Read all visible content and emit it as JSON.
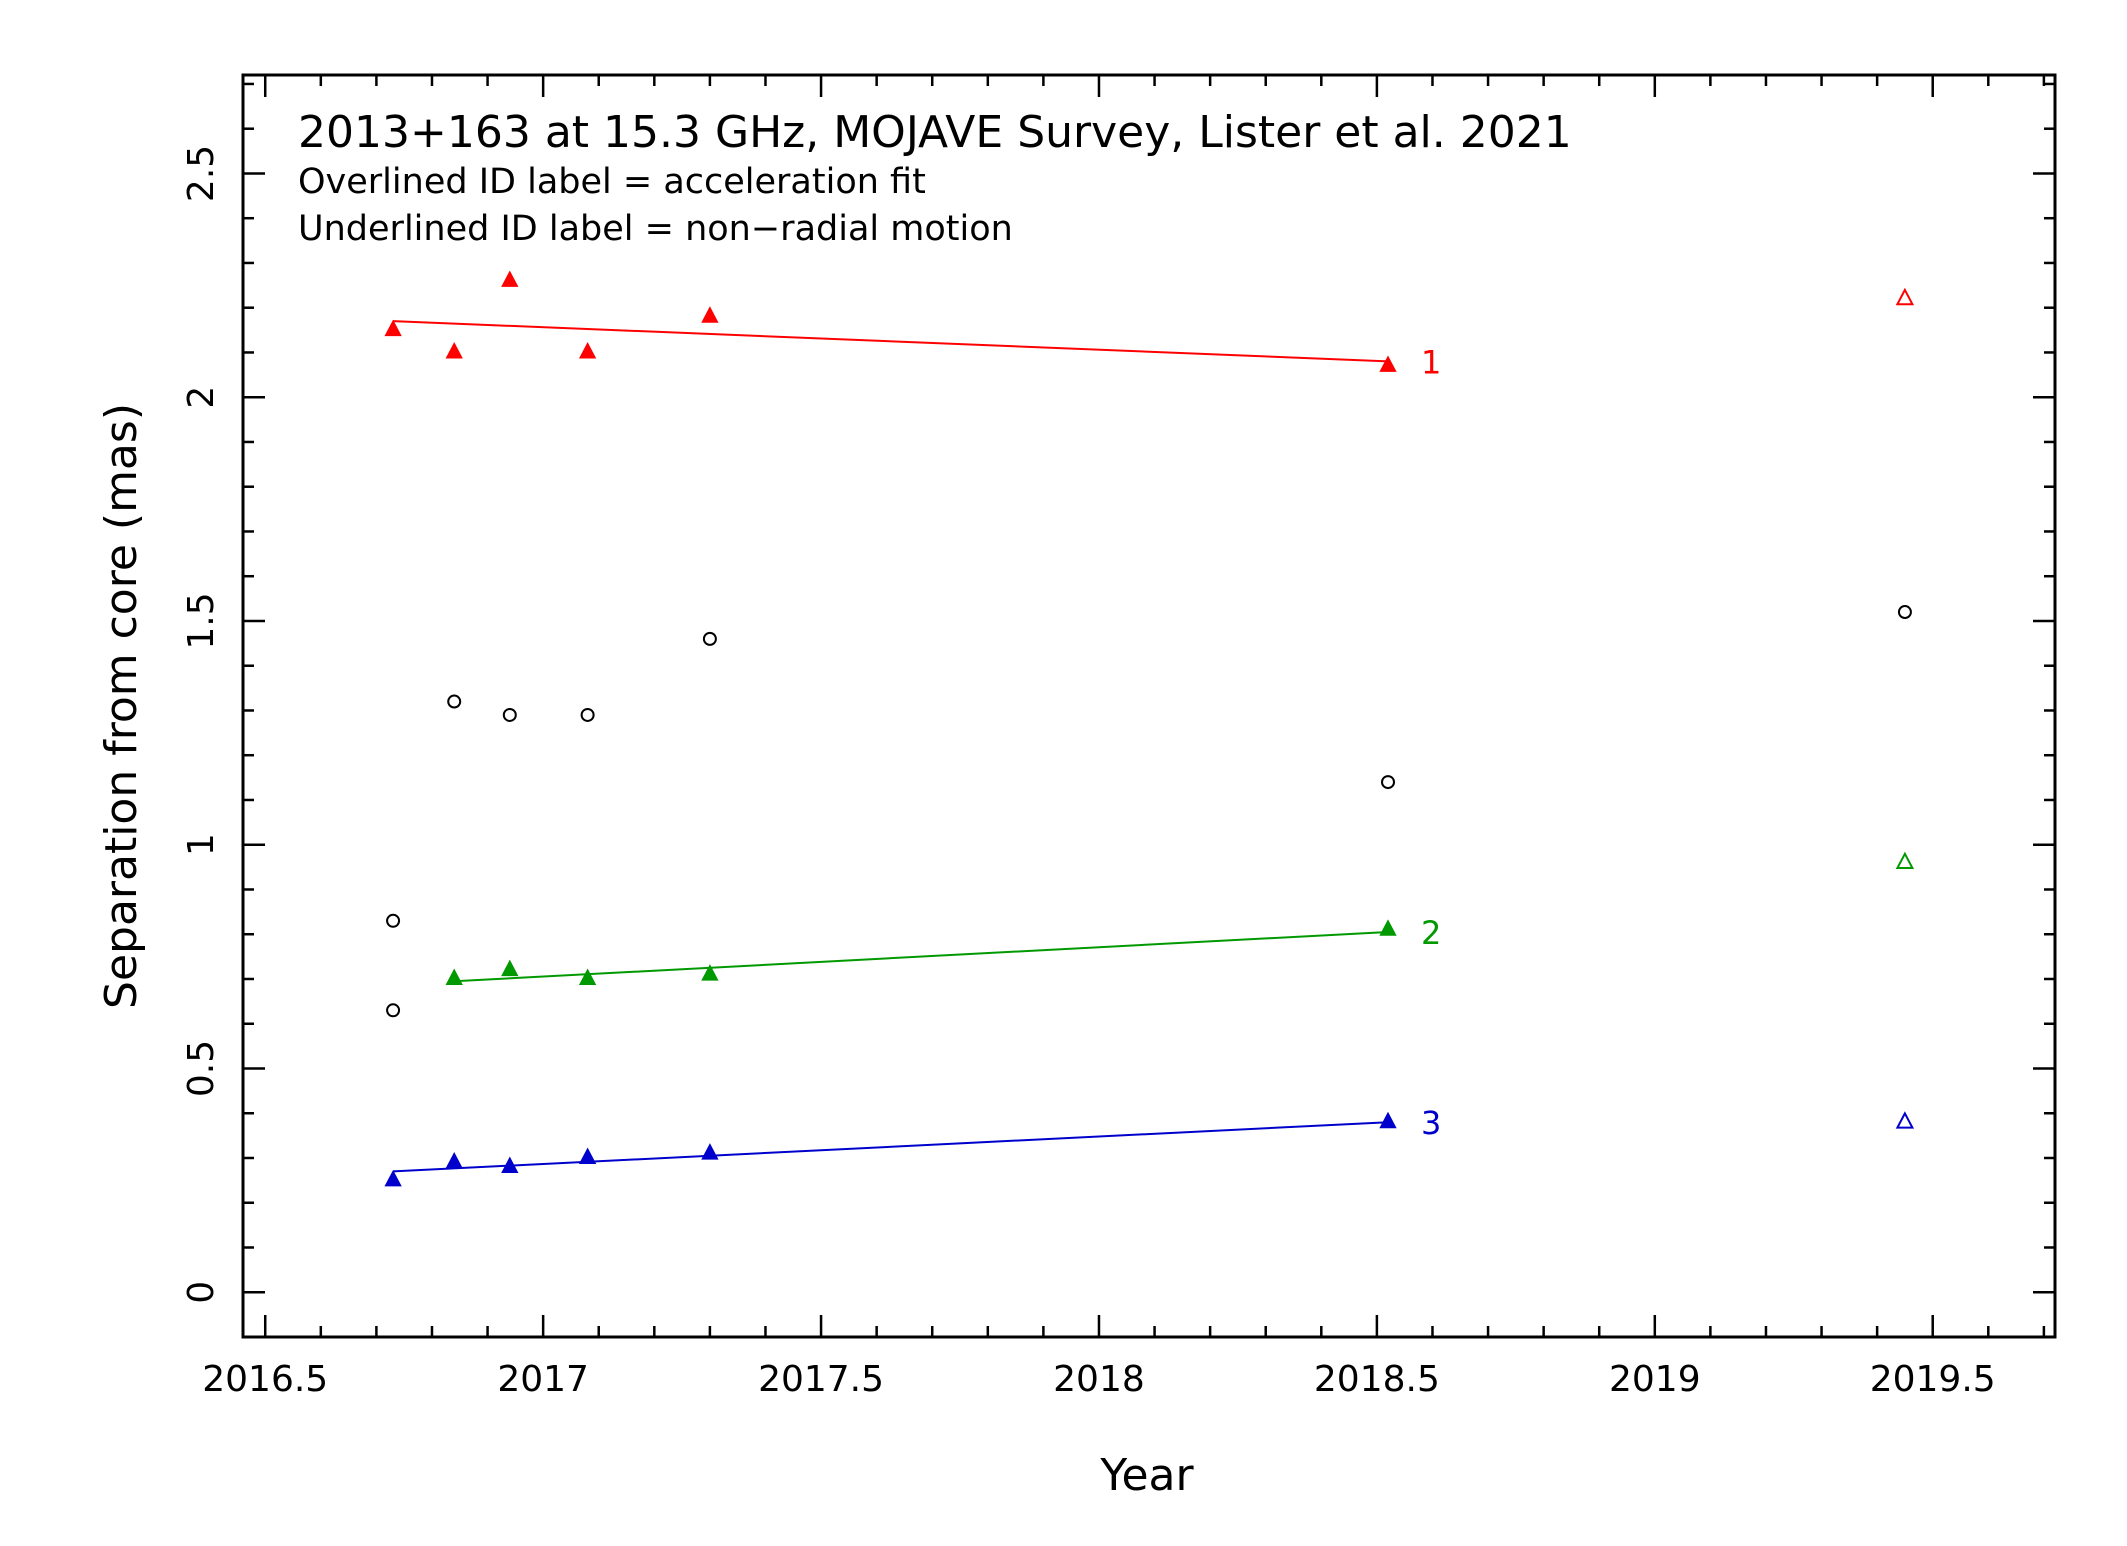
{
  "chart_data": {
    "type": "scatter",
    "title": "2013+163 at 15.3 GHz, MOJAVE Survey, Lister et al. 2021",
    "annotations": [
      "Overlined ID label = acceleration fit",
      "Underlined ID label = non−radial motion"
    ],
    "xlabel": "Year",
    "ylabel": "Separation from core (mas)",
    "xlim": [
      2016.46,
      2019.72
    ],
    "ylim": [
      -0.1,
      2.72
    ],
    "xticks": [
      2016.5,
      2017,
      2017.5,
      2018,
      2018.5,
      2019,
      2019.5
    ],
    "xtick_labels": [
      "2016.5",
      "2017",
      "2017.5",
      "2018",
      "2018.5",
      "2019",
      "2019.5"
    ],
    "yticks": [
      0,
      0.5,
      1,
      1.5,
      2,
      2.5
    ],
    "ytick_labels": [
      "0",
      "0.5",
      "1",
      "1.5",
      "2",
      "2.5"
    ],
    "grid": false,
    "series": [
      {
        "name": "1",
        "color": "#ff0000",
        "marker": "filled-triangle",
        "x": [
          2016.73,
          2016.84,
          2016.94,
          2017.08,
          2017.3,
          2018.52
        ],
        "y": [
          2.15,
          2.1,
          2.26,
          2.1,
          2.18,
          2.07
        ],
        "fit": {
          "x": [
            2016.73,
            2018.52
          ],
          "y": [
            2.17,
            2.08
          ]
        },
        "extra": {
          "marker": "open-triangle",
          "x": [
            2019.45
          ],
          "y": [
            2.22
          ]
        }
      },
      {
        "name": "2",
        "color": "#009900",
        "marker": "filled-triangle",
        "x": [
          2016.84,
          2016.94,
          2017.08,
          2017.3,
          2018.52
        ],
        "y": [
          0.7,
          0.72,
          0.7,
          0.71,
          0.81
        ],
        "fit": {
          "x": [
            2016.84,
            2018.52
          ],
          "y": [
            0.695,
            0.805
          ]
        },
        "extra": {
          "marker": "open-triangle",
          "x": [
            2019.45
          ],
          "y": [
            0.96
          ]
        }
      },
      {
        "name": "3",
        "color": "#0000cc",
        "marker": "filled-triangle",
        "x": [
          2016.73,
          2016.84,
          2016.94,
          2017.08,
          2017.3,
          2018.52
        ],
        "y": [
          0.25,
          0.29,
          0.28,
          0.3,
          0.31,
          0.38
        ],
        "fit": {
          "x": [
            2016.73,
            2018.52
          ],
          "y": [
            0.27,
            0.38
          ]
        },
        "extra": {
          "marker": "open-triangle",
          "x": [
            2019.45
          ],
          "y": [
            0.38
          ]
        }
      },
      {
        "color": "#000000",
        "marker": "open-circle",
        "x": [
          2016.73,
          2016.73,
          2016.84,
          2016.94,
          2017.08,
          2017.3,
          2018.52,
          2019.45
        ],
        "y": [
          0.83,
          0.63,
          1.32,
          1.29,
          1.29,
          1.46,
          1.14,
          1.52
        ]
      }
    ]
  }
}
